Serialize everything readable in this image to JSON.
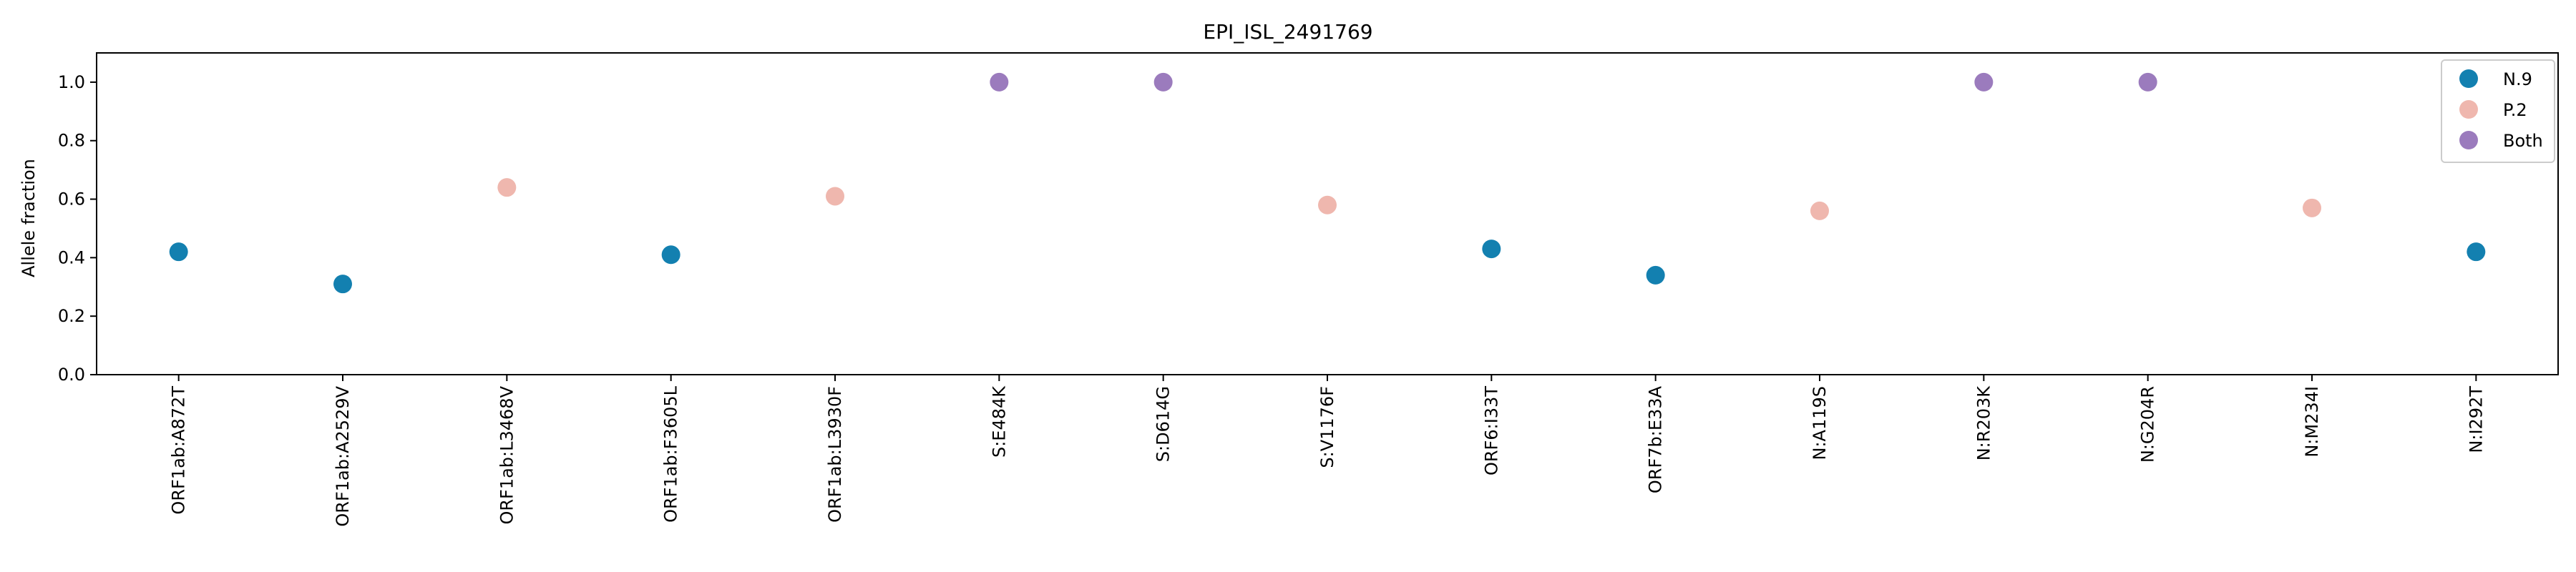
{
  "chart_data": {
    "type": "scatter",
    "title": "EPI_ISL_2491769",
    "xlabel": "",
    "ylabel": "Allele fraction",
    "ylim": [
      0.0,
      1.1
    ],
    "yticks": [
      "0.0",
      "0.2",
      "0.4",
      "0.6",
      "0.8",
      "1.0"
    ],
    "grid": false,
    "legend_position": "top-right",
    "categories": [
      "ORF1ab:A872T",
      "ORF1ab:A2529V",
      "ORF1ab:L3468V",
      "ORF1ab:F3605L",
      "ORF1ab:L3930F",
      "S:E484K",
      "S:D614G",
      "S:V1176F",
      "ORF6:I33T",
      "ORF7b:E33A",
      "N:A119S",
      "N:R203K",
      "N:G204R",
      "N:M234I",
      "N:I292T"
    ],
    "series": [
      {
        "name": "N.9",
        "color": "#1380b0",
        "points": [
          {
            "x": "ORF1ab:A872T",
            "y": 0.42
          },
          {
            "x": "ORF1ab:A2529V",
            "y": 0.31
          },
          {
            "x": "ORF1ab:F3605L",
            "y": 0.41
          },
          {
            "x": "ORF6:I33T",
            "y": 0.43
          },
          {
            "x": "ORF7b:E33A",
            "y": 0.34
          },
          {
            "x": "N:I292T",
            "y": 0.42
          }
        ]
      },
      {
        "name": "P.2",
        "color": "#efb7ae",
        "points": [
          {
            "x": "ORF1ab:L3468V",
            "y": 0.64
          },
          {
            "x": "ORF1ab:L3930F",
            "y": 0.61
          },
          {
            "x": "S:V1176F",
            "y": 0.58
          },
          {
            "x": "N:A119S",
            "y": 0.56
          },
          {
            "x": "N:M234I",
            "y": 0.57
          }
        ]
      },
      {
        "name": "Both",
        "color": "#9b7bbd",
        "points": [
          {
            "x": "S:E484K",
            "y": 1.0
          },
          {
            "x": "S:D614G",
            "y": 1.0
          },
          {
            "x": "N:R203K",
            "y": 1.0
          },
          {
            "x": "N:G204R",
            "y": 1.0
          }
        ]
      }
    ]
  }
}
